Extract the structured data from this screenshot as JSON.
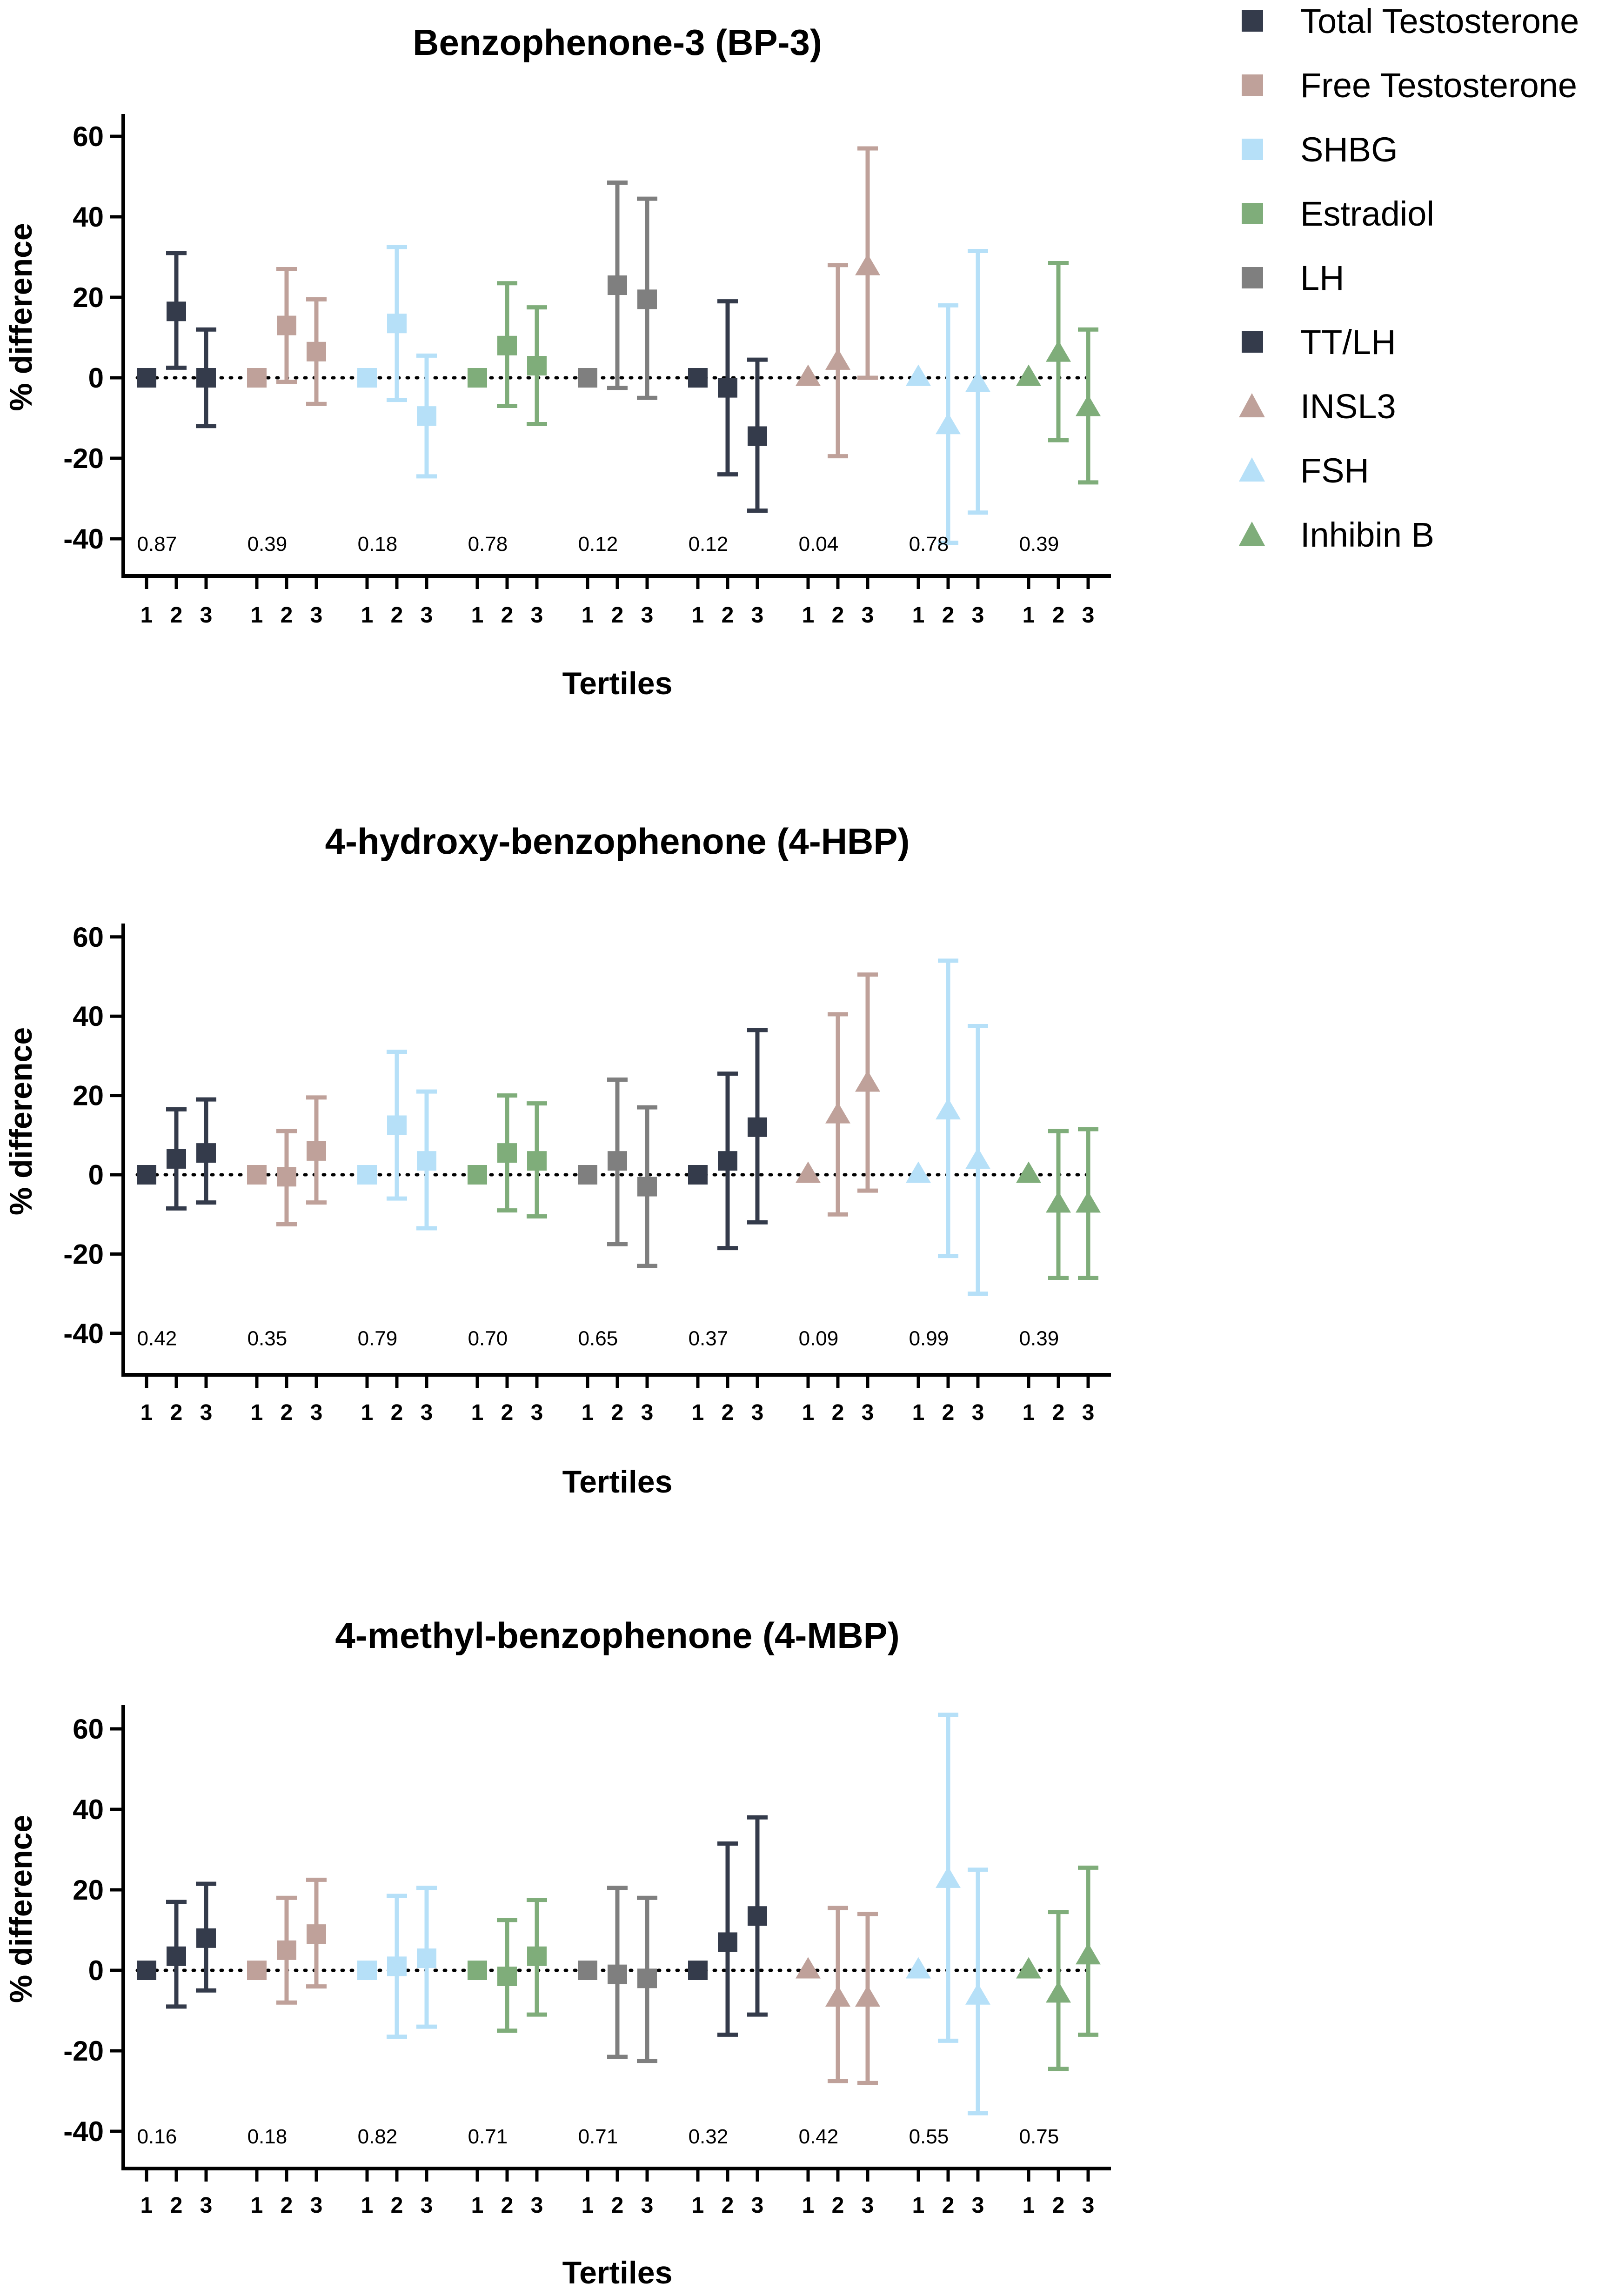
{
  "chart_data": [
    {
      "type": "scatter",
      "title": "Benzophenone-3 (BP-3)",
      "xlabel": "Tertiles",
      "ylabel": "% difference",
      "ylim": [
        -45,
        65
      ],
      "yticks": [
        "60",
        "40",
        "20",
        "0",
        "-20",
        "-40"
      ],
      "categories": [
        "1",
        "2",
        "3"
      ],
      "reference_line": 0,
      "series": [
        {
          "name": "Total Testosterone",
          "values": [
            0,
            16.5,
            0
          ],
          "lower": [
            0,
            2.5,
            -12
          ],
          "upper": [
            0,
            31,
            12
          ],
          "p_value": "0.87"
        },
        {
          "name": "Free Testosterone",
          "values": [
            0,
            13,
            6.5
          ],
          "lower": [
            0,
            -1,
            -6.5
          ],
          "upper": [
            0,
            27,
            19.5
          ],
          "p_value": "0.39"
        },
        {
          "name": "SHBG",
          "values": [
            0,
            13.5,
            -9.5
          ],
          "lower": [
            0,
            -5.5,
            -24.5
          ],
          "upper": [
            0,
            32.5,
            5.5
          ],
          "p_value": "0.18"
        },
        {
          "name": "Estradiol",
          "values": [
            0,
            8,
            3
          ],
          "lower": [
            0,
            -7,
            -11.5
          ],
          "upper": [
            0,
            23.5,
            17.5
          ],
          "p_value": "0.78"
        },
        {
          "name": "LH",
          "values": [
            0,
            23,
            19.5
          ],
          "lower": [
            0,
            -2.5,
            -5
          ],
          "upper": [
            0,
            48.5,
            44.5
          ],
          "p_value": "0.12"
        },
        {
          "name": "TT/LH",
          "values": [
            0,
            -2.5,
            -14.5
          ],
          "lower": [
            0,
            -24,
            -33
          ],
          "upper": [
            0,
            19,
            4.5
          ],
          "p_value": "0.12"
        },
        {
          "name": "INSL3",
          "values": [
            0,
            4,
            27.5
          ],
          "lower": [
            0,
            -19.5,
            0
          ],
          "upper": [
            0,
            28,
            57
          ],
          "p_value": "0.04"
        },
        {
          "name": "FSH",
          "values": [
            0,
            -12,
            -1.5
          ],
          "lower": [
            0,
            -41,
            -33.5
          ],
          "upper": [
            0,
            18,
            31.5
          ],
          "p_value": "0.78"
        },
        {
          "name": "Inhibin B",
          "values": [
            0,
            6,
            -7.5
          ],
          "lower": [
            0,
            -15.5,
            -26
          ],
          "upper": [
            0,
            28.5,
            12
          ],
          "p_value": "0.39"
        }
      ]
    },
    {
      "type": "scatter",
      "title": "4-hydroxy-benzophenone (4-HBP)",
      "xlabel": "Tertiles",
      "ylabel": "% difference",
      "ylim": [
        -45,
        65
      ],
      "yticks": [
        "60",
        "40",
        "20",
        "0",
        "-20",
        "-40"
      ],
      "categories": [
        "1",
        "2",
        "3"
      ],
      "reference_line": 0,
      "series": [
        {
          "name": "Total Testosterone",
          "values": [
            0,
            4,
            5.5
          ],
          "lower": [
            0,
            -8.5,
            -7
          ],
          "upper": [
            0,
            16.5,
            19
          ],
          "p_value": "0.42"
        },
        {
          "name": "Free Testosterone",
          "values": [
            0,
            -0.5,
            6
          ],
          "lower": [
            0,
            -12.5,
            -7
          ],
          "upper": [
            0,
            11,
            19.5
          ],
          "p_value": "0.35"
        },
        {
          "name": "SHBG",
          "values": [
            0,
            12.5,
            3.5
          ],
          "lower": [
            0,
            -6,
            -13.5
          ],
          "upper": [
            0,
            31,
            21
          ],
          "p_value": "0.79"
        },
        {
          "name": "Estradiol",
          "values": [
            0,
            5.5,
            3.5
          ],
          "lower": [
            0,
            -9,
            -10.5
          ],
          "upper": [
            0,
            20,
            18
          ],
          "p_value": "0.70"
        },
        {
          "name": "LH",
          "values": [
            0,
            3.5,
            -3
          ],
          "lower": [
            0,
            -17.5,
            -23
          ],
          "upper": [
            0,
            24,
            17
          ],
          "p_value": "0.65"
        },
        {
          "name": "TT/LH",
          "values": [
            0,
            3.5,
            12
          ],
          "lower": [
            0,
            -18.5,
            -12
          ],
          "upper": [
            0,
            25.5,
            36.5
          ],
          "p_value": "0.37"
        },
        {
          "name": "INSL3",
          "values": [
            0,
            15,
            23
          ],
          "lower": [
            0,
            -10,
            -4
          ],
          "upper": [
            0,
            40.5,
            50.5
          ],
          "p_value": "0.09"
        },
        {
          "name": "FSH",
          "values": [
            0,
            16,
            3.5
          ],
          "lower": [
            0,
            -20.5,
            -30
          ],
          "upper": [
            0,
            54,
            37.5
          ],
          "p_value": "0.99"
        },
        {
          "name": "Inhibin B",
          "values": [
            0,
            -7.5,
            -7.5
          ],
          "lower": [
            0,
            -26,
            -26
          ],
          "upper": [
            0,
            11,
            11.5
          ],
          "p_value": "0.39"
        }
      ]
    },
    {
      "type": "scatter",
      "title": "4-methyl-benzophenone (4-MBP)",
      "xlabel": "Tertiles",
      "ylabel": "% difference",
      "ylim": [
        -45,
        65
      ],
      "yticks": [
        "60",
        "40",
        "20",
        "0",
        "-20",
        "-40"
      ],
      "categories": [
        "1",
        "2",
        "3"
      ],
      "reference_line": 0,
      "series": [
        {
          "name": "Total Testosterone",
          "values": [
            0,
            3.5,
            8
          ],
          "lower": [
            0,
            -9,
            -5
          ],
          "upper": [
            0,
            17,
            21.5
          ],
          "p_value": "0.16"
        },
        {
          "name": "Free Testosterone",
          "values": [
            0,
            5,
            9
          ],
          "lower": [
            0,
            -8,
            -4
          ],
          "upper": [
            0,
            18,
            22.5
          ],
          "p_value": "0.18"
        },
        {
          "name": "SHBG",
          "values": [
            0,
            1,
            3
          ],
          "lower": [
            0,
            -16.5,
            -14
          ],
          "upper": [
            0,
            18.5,
            20.5
          ],
          "p_value": "0.82"
        },
        {
          "name": "Estradiol",
          "values": [
            0,
            -1.5,
            3.5
          ],
          "lower": [
            0,
            -15,
            -11
          ],
          "upper": [
            0,
            12.5,
            17.5
          ],
          "p_value": "0.71"
        },
        {
          "name": "LH",
          "values": [
            0,
            -1,
            -2
          ],
          "lower": [
            0,
            -21.5,
            -22.5
          ],
          "upper": [
            0,
            20.5,
            18
          ],
          "p_value": "0.71"
        },
        {
          "name": "TT/LH",
          "values": [
            0,
            7,
            13.5
          ],
          "lower": [
            0,
            -16,
            -11
          ],
          "upper": [
            0,
            31.5,
            38
          ],
          "p_value": "0.32"
        },
        {
          "name": "INSL3",
          "values": [
            0,
            -7,
            -7
          ],
          "lower": [
            0,
            -27.5,
            -28
          ],
          "upper": [
            0,
            15.5,
            14
          ],
          "p_value": "0.42"
        },
        {
          "name": "FSH",
          "values": [
            0,
            22.5,
            -6.5
          ],
          "lower": [
            0,
            -17.5,
            -35.5
          ],
          "upper": [
            0,
            63.5,
            25
          ],
          "p_value": "0.55"
        },
        {
          "name": "Inhibin B",
          "values": [
            0,
            -6,
            3.5
          ],
          "lower": [
            0,
            -24.5,
            -16
          ],
          "upper": [
            0,
            14.5,
            25.5
          ],
          "p_value": "0.75"
        }
      ]
    }
  ],
  "legend": {
    "placement": "top-right",
    "items": [
      {
        "label": "Total Testosterone",
        "marker": "square",
        "color": "#343b4b"
      },
      {
        "label": "Free Testosterone",
        "marker": "square",
        "color": "#bfa19a"
      },
      {
        "label": "SHBG",
        "marker": "square",
        "color": "#b6e0f8"
      },
      {
        "label": "Estradiol",
        "marker": "square",
        "color": "#7fad7a"
      },
      {
        "label": "LH",
        "marker": "square",
        "color": "#7f7f7f"
      },
      {
        "label": "TT/LH",
        "marker": "square",
        "color": "#343b4b"
      },
      {
        "label": "INSL3",
        "marker": "triangle",
        "color": "#bfa19a"
      },
      {
        "label": "FSH",
        "marker": "triangle",
        "color": "#b6e0f8"
      },
      {
        "label": "Inhibin B",
        "marker": "triangle",
        "color": "#7fad7a"
      }
    ]
  }
}
